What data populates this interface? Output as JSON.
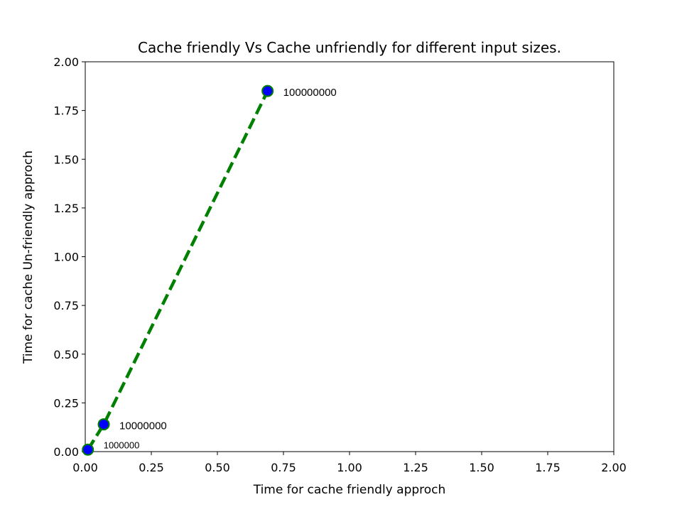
{
  "chart_data": {
    "type": "line",
    "title": "Cache friendly Vs Cache unfriendly for different input sizes.",
    "xlabel": "Time for cache friendly approch",
    "ylabel": "Time for cache Un-friendly approch",
    "xlim": [
      0,
      2
    ],
    "ylim": [
      0,
      2
    ],
    "x_ticks": [
      "0.00",
      "0.25",
      "0.50",
      "0.75",
      "1.00",
      "1.25",
      "1.50",
      "1.75",
      "2.00"
    ],
    "y_ticks": [
      "0.00",
      "0.25",
      "0.50",
      "0.75",
      "1.00",
      "1.25",
      "1.50",
      "1.75",
      "2.00"
    ],
    "grid": false,
    "series": [
      {
        "x": [
          0.01,
          0.07,
          0.69
        ],
        "y": [
          0.01,
          0.14,
          1.85
        ],
        "labels": [
          "1000000",
          "10000000",
          "100000000"
        ],
        "line_style": "dashed",
        "line_color": "#008000",
        "marker_color": "#0000ff",
        "marker_edge_color": "#008000"
      }
    ]
  }
}
